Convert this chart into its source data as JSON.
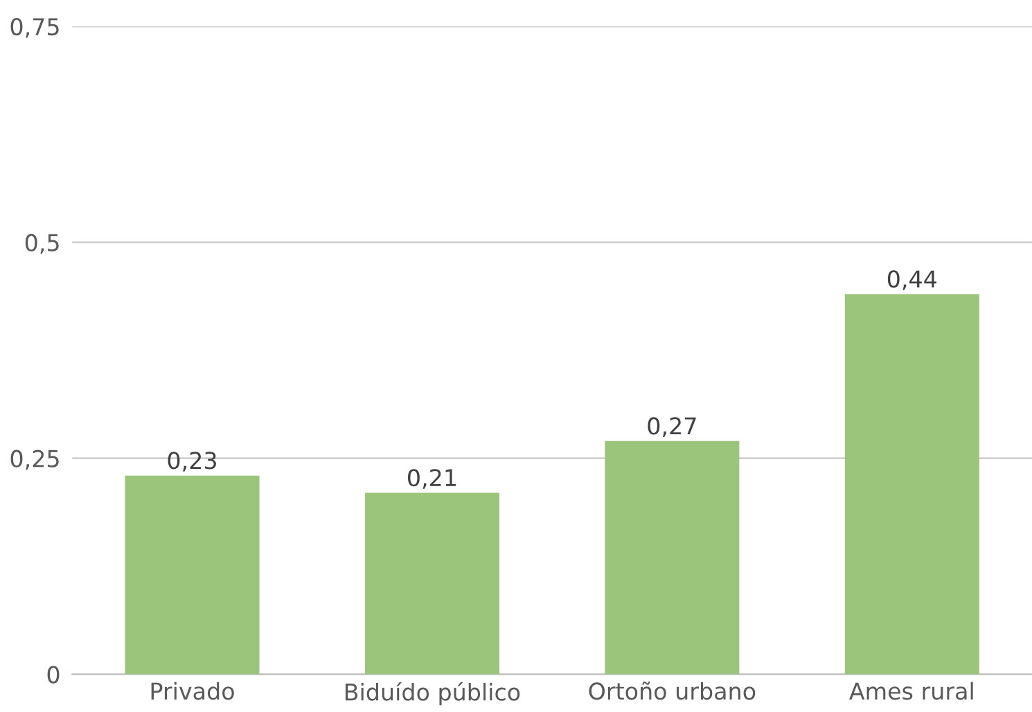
{
  "chart_data": {
    "type": "bar",
    "categories": [
      "Privado",
      "Biduído público",
      "Ortoño urbano",
      "Ames rural"
    ],
    "values": [
      0.23,
      0.21,
      0.27,
      0.44
    ],
    "value_labels": [
      "0,23",
      "0,21",
      "0,27",
      "0,44"
    ],
    "color": "#9bc57a",
    "ylim": [
      0,
      0.75
    ],
    "yticks": [
      0,
      {
        "value": 0.25,
        "label": "0,25"
      },
      {
        "value": 0.5,
        "label": "0,5"
      },
      {
        "value": 0.75,
        "label": "0,75"
      }
    ],
    "grid": "y",
    "legend": false
  }
}
